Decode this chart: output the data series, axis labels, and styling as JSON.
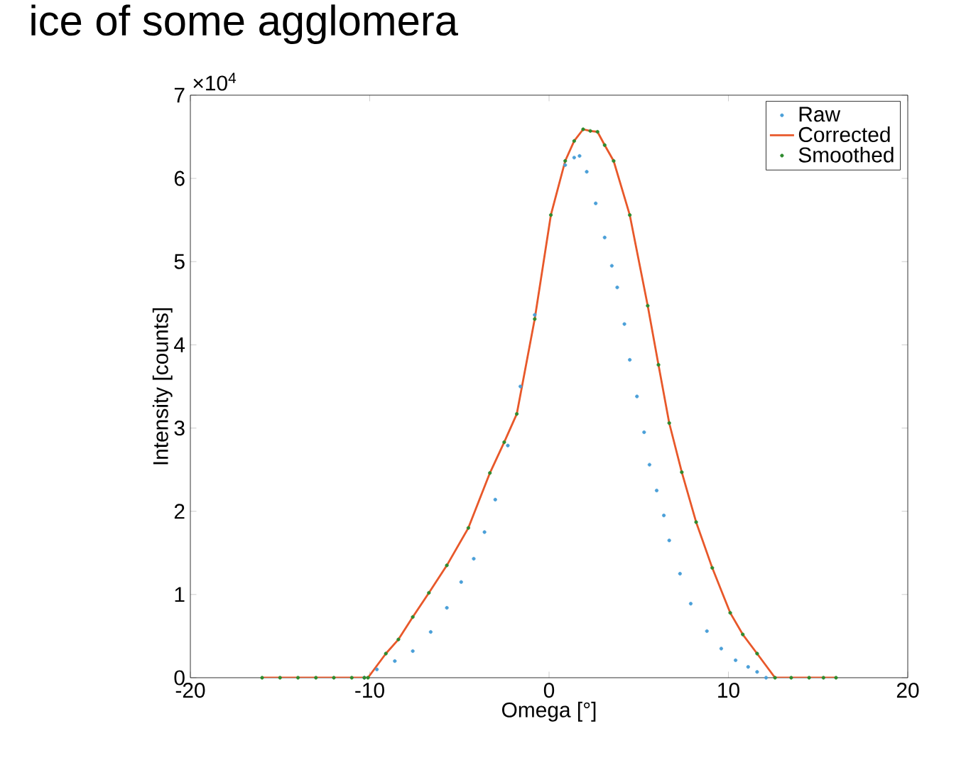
{
  "chart_data": {
    "type": "line",
    "title": "ice of some agglomera",
    "xlabel": "Omega [°]",
    "ylabel": "Intensity [counts]",
    "annotations": [
      "×10$^{4}$"
    ],
    "xlim": [
      -20,
      20
    ],
    "xticks": [
      -20,
      -10,
      0,
      10,
      20
    ],
    "ylim": [
      0,
      7
    ],
    "yticks": [
      0,
      1,
      2,
      3,
      4,
      5,
      6,
      7
    ],
    "grid": false,
    "legend": "top right",
    "series": [
      {
        "name": "Raw",
        "type": "scatter",
        "marker": "circle",
        "color": "#4a9fd8",
        "x": [
          -10.3,
          -9.6,
          -8.6,
          -7.6,
          -6.6,
          -5.7,
          -4.9,
          -4.2,
          -3.6,
          -3.0,
          -2.3,
          -1.6,
          -0.8,
          0.1,
          0.9,
          1.4,
          1.7,
          2.1,
          2.6,
          3.1,
          3.5,
          3.8,
          4.2,
          4.5,
          4.9,
          5.3,
          5.6,
          6.0,
          6.4,
          6.7,
          7.3,
          7.9,
          8.8,
          9.6,
          10.4,
          11.1,
          11.6,
          12.1
        ],
        "values": [
          0,
          0.1,
          0.2,
          0.32,
          0.55,
          0.84,
          1.15,
          1.43,
          1.75,
          2.14,
          2.79,
          3.5,
          4.36,
          null,
          6.16,
          6.25,
          6.27,
          6.08,
          5.7,
          5.29,
          4.95,
          4.69,
          4.25,
          3.82,
          3.38,
          2.95,
          2.56,
          2.25,
          1.95,
          1.65,
          1.25,
          0.89,
          0.56,
          0.35,
          0.21,
          0.13,
          0.07,
          0
        ]
      },
      {
        "name": "Corrected",
        "line_style": "solid",
        "color": "#e8582a",
        "x": [
          -16,
          -12,
          -10.3,
          -10.1,
          -9.1,
          -8.4,
          -7.6,
          -6.7,
          -5.7,
          -4.5,
          -3.3,
          -2.5,
          -1.8,
          -0.8,
          0.1,
          0.9,
          1.4,
          1.9,
          2.3,
          2.7,
          3.1,
          3.6,
          4.5,
          5.5,
          6.1,
          6.7,
          7.4,
          8.2,
          9.1,
          10.1,
          10.8,
          11.6,
          12.6,
          14,
          16
        ],
        "values": [
          0,
          0,
          0,
          0,
          0.29,
          0.46,
          0.73,
          1.02,
          1.35,
          1.8,
          2.46,
          2.83,
          3.17,
          4.31,
          5.56,
          6.21,
          6.45,
          6.59,
          6.57,
          6.56,
          6.4,
          6.21,
          5.56,
          4.47,
          3.76,
          3.06,
          2.47,
          1.87,
          1.32,
          0.78,
          0.52,
          0.29,
          0,
          0,
          0
        ]
      },
      {
        "name": "Smoothed",
        "type": "scatter",
        "marker": "circle",
        "color": "#2e8b2e",
        "x": [
          -16,
          -15,
          -14,
          -13,
          -12,
          -11,
          -10.3,
          -10.1,
          -9.1,
          -8.4,
          -7.6,
          -6.7,
          -5.7,
          -4.5,
          -3.3,
          -2.5,
          -1.8,
          -0.8,
          0.1,
          0.9,
          1.4,
          1.9,
          2.3,
          2.7,
          3.1,
          3.6,
          4.5,
          5.5,
          6.1,
          6.7,
          7.4,
          8.2,
          9.1,
          10.1,
          10.8,
          11.6,
          12.6,
          13.5,
          14.5,
          15.3,
          16
        ],
        "values": [
          0,
          0,
          0,
          0,
          0,
          0,
          0,
          0,
          0.29,
          0.46,
          0.73,
          1.02,
          1.35,
          1.8,
          2.46,
          2.83,
          3.17,
          4.31,
          5.56,
          6.21,
          6.45,
          6.59,
          6.57,
          6.56,
          6.4,
          6.21,
          5.56,
          4.47,
          3.76,
          3.06,
          2.47,
          1.87,
          1.32,
          0.78,
          0.52,
          0.29,
          0,
          0,
          0,
          0,
          0
        ]
      }
    ]
  }
}
